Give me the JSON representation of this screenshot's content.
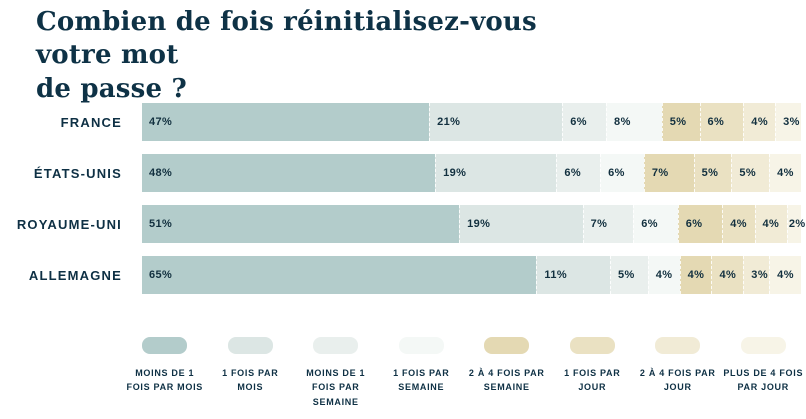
{
  "chart": {
    "title": "Combien de fois réinitialisez-vous votre mot de passe ?",
    "title_lines": [
      "Combien de fois réinitialisez-vous votre mot",
      "de passe ?"
    ]
  },
  "chart_data": {
    "type": "bar",
    "orientation": "horizontal",
    "stacked": true,
    "title": "Combien de fois réinitialisez-vous votre mot de passe ?",
    "categories": [
      "FRANCE",
      "ÉTATS-UNIS",
      "ROYAUME-UNI",
      "ALLEMAGNE"
    ],
    "series": [
      {
        "name": "MOINS DE 1 FOIS PAR MOIS",
        "color": "#b3cccb",
        "values": [
          47,
          48,
          51,
          65
        ]
      },
      {
        "name": "1 FOIS PAR MOIS",
        "color": "#dce6e4",
        "values": [
          21,
          19,
          19,
          11
        ]
      },
      {
        "name": "MOINS DE 1 FOIS PAR SEMAINE",
        "color": "#e9efed",
        "values": [
          6,
          6,
          7,
          5
        ]
      },
      {
        "name": "1 FOIS PAR SEMAINE",
        "color": "#f4f8f6",
        "values": [
          8,
          6,
          6,
          4
        ]
      },
      {
        "name": "2 À 4 FOIS PAR SEMAINE",
        "color": "#e4d9b3",
        "values": [
          5,
          7,
          6,
          4
        ]
      },
      {
        "name": "1 FOIS PAR JOUR",
        "color": "#eae1c2",
        "values": [
          6,
          5,
          4,
          4
        ]
      },
      {
        "name": "2 À 4 FOIS PAR JOUR",
        "color": "#f1ebd6",
        "values": [
          4,
          5,
          4,
          3
        ]
      },
      {
        "name": "PLUS DE 4 FOIS PAR JOUR",
        "color": "#f7f4e7",
        "values": [
          3,
          4,
          2,
          4
        ]
      }
    ],
    "value_suffix": "%",
    "xlim": [
      0,
      100
    ],
    "grid": false,
    "legend_position": "bottom",
    "colors": {
      "text": "#0e3044",
      "background": "#ffffff"
    }
  }
}
